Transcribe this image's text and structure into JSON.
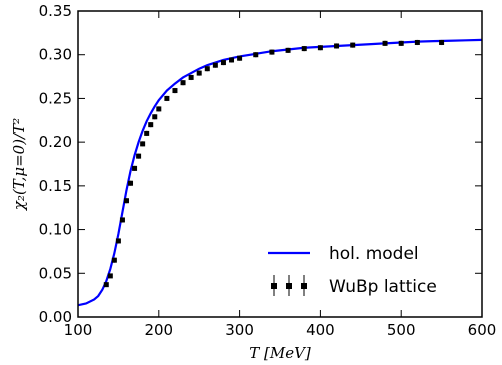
{
  "chart_data": {
    "type": "line",
    "xlabel": "T [MeV]",
    "ylabel": "χ₂(T,μ=0)/T²",
    "xlim": [
      100,
      600
    ],
    "ylim": [
      0.0,
      0.35
    ],
    "x_ticks": [
      "100",
      "200",
      "300",
      "400",
      "500",
      "600"
    ],
    "y_ticks": [
      "0.00",
      "0.05",
      "0.10",
      "0.15",
      "0.20",
      "0.25",
      "0.30",
      "0.35"
    ],
    "grid": false,
    "legend_position": "lower-right",
    "series": [
      {
        "name": "hol. model",
        "kind": "line",
        "color": "#0000ff",
        "x": [
          100,
          110,
          120,
          125,
          130,
          135,
          140,
          145,
          150,
          155,
          160,
          165,
          170,
          175,
          180,
          185,
          190,
          195,
          200,
          210,
          220,
          230,
          240,
          250,
          260,
          270,
          280,
          290,
          300,
          320,
          340,
          360,
          380,
          400,
          420,
          440,
          460,
          480,
          500,
          520,
          540,
          560,
          580,
          600
        ],
        "y": [
          0.0135,
          0.0155,
          0.02,
          0.024,
          0.031,
          0.041,
          0.055,
          0.073,
          0.095,
          0.12,
          0.145,
          0.167,
          0.185,
          0.2,
          0.213,
          0.224,
          0.233,
          0.241,
          0.248,
          0.259,
          0.267,
          0.274,
          0.279,
          0.284,
          0.288,
          0.291,
          0.294,
          0.296,
          0.298,
          0.301,
          0.304,
          0.306,
          0.308,
          0.309,
          0.31,
          0.311,
          0.312,
          0.313,
          0.314,
          0.315,
          0.3155,
          0.316,
          0.3165,
          0.317
        ]
      },
      {
        "name": "WuBp lattice",
        "kind": "errorbar",
        "color": "#000000",
        "errorbar_color": "#808080",
        "x": [
          135,
          140,
          145,
          150,
          155,
          160,
          165,
          170,
          175,
          180,
          185,
          190,
          195,
          200,
          210,
          220,
          230,
          240,
          250,
          260,
          270,
          280,
          290,
          300,
          320,
          340,
          360,
          380,
          400,
          420,
          440,
          480,
          500,
          520,
          550
        ],
        "y": [
          0.037,
          0.047,
          0.065,
          0.087,
          0.111,
          0.133,
          0.153,
          0.17,
          0.184,
          0.198,
          0.21,
          0.22,
          0.229,
          0.238,
          0.25,
          0.259,
          0.268,
          0.274,
          0.279,
          0.284,
          0.288,
          0.291,
          0.294,
          0.296,
          0.3,
          0.303,
          0.305,
          0.307,
          0.308,
          0.31,
          0.311,
          0.313,
          0.313,
          0.314,
          0.314
        ],
        "err": [
          0.002,
          0.002,
          0.003,
          0.003,
          0.003,
          0.003,
          0.003,
          0.003,
          0.003,
          0.003,
          0.003,
          0.003,
          0.003,
          0.003,
          0.003,
          0.003,
          0.003,
          0.003,
          0.003,
          0.003,
          0.003,
          0.003,
          0.003,
          0.003,
          0.003,
          0.003,
          0.003,
          0.003,
          0.003,
          0.003,
          0.003,
          0.003,
          0.003,
          0.003,
          0.003
        ]
      }
    ]
  }
}
